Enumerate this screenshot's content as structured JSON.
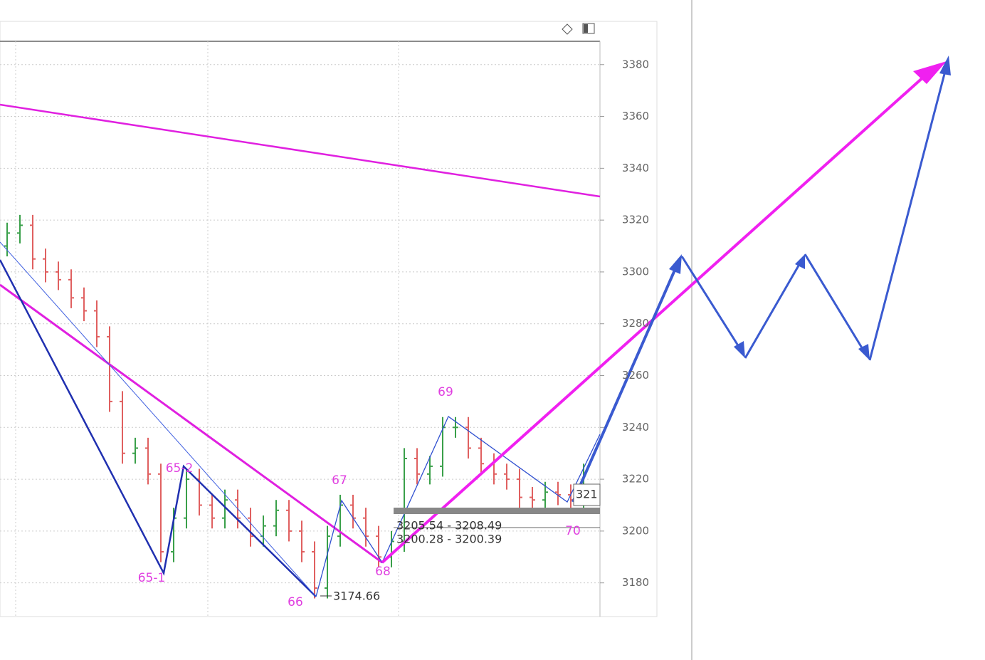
{
  "chart_data": {
    "type": "ohlc",
    "open": [
      3310,
      3315,
      3318,
      3305,
      3300,
      3297,
      3290,
      3285,
      3275,
      3250,
      3230,
      3232,
      3222,
      3192,
      3205,
      3220,
      3210,
      3205,
      3212,
      3205,
      3198,
      3202,
      3208,
      3200,
      3192,
      3178,
      3198,
      3210,
      3205,
      3198,
      3190,
      3196,
      3228,
      3222,
      3225,
      3240,
      3240,
      3232,
      3226,
      3222,
      3220,
      3213,
      3212,
      3215,
      3214,
      3212
    ],
    "high": [
      3319,
      3322,
      3322,
      3309,
      3304,
      3301,
      3294,
      3289,
      3279,
      3254,
      3236,
      3236,
      3226,
      3209,
      3224,
      3224,
      3214,
      3216,
      3216,
      3209,
      3206,
      3212,
      3212,
      3204,
      3196,
      3202,
      3214,
      3214,
      3209,
      3202,
      3200,
      3232,
      3232,
      3229,
      3244,
      3244,
      3244,
      3236,
      3230,
      3226,
      3224,
      3217,
      3219,
      3219,
      3218,
      3226
    ],
    "low": [
      3306,
      3311,
      3301,
      3296,
      3293,
      3286,
      3281,
      3271,
      3246,
      3226,
      3226,
      3218,
      3188,
      3188,
      3201,
      3206,
      3201,
      3201,
      3201,
      3194,
      3194,
      3198,
      3196,
      3188,
      3174,
      3174,
      3194,
      3201,
      3194,
      3186,
      3186,
      3192,
      3218,
      3218,
      3221,
      3236,
      3228,
      3222,
      3218,
      3216,
      3209,
      3208,
      3208,
      3210,
      3208,
      3208
    ],
    "close": [
      3315,
      3318,
      3305,
      3300,
      3297,
      3290,
      3285,
      3275,
      3250,
      3230,
      3232,
      3222,
      3192,
      3205,
      3220,
      3210,
      3205,
      3212,
      3205,
      3198,
      3202,
      3208,
      3200,
      3192,
      3178,
      3198,
      3210,
      3205,
      3198,
      3190,
      3196,
      3228,
      3222,
      3225,
      3240,
      3240,
      3232,
      3226,
      3222,
      3220,
      3213,
      3212,
      3215,
      3214,
      3212,
      3222
    ],
    "up_color": "#3aa04a",
    "down_color": "#e06060",
    "ylim": [
      3167,
      3389
    ],
    "yticks": [
      3180,
      3200,
      3220,
      3240,
      3260,
      3280,
      3300,
      3320,
      3340,
      3360,
      3380
    ],
    "grid": true,
    "wave_labels": [
      "65-1",
      "65-2",
      "66",
      "67",
      "68",
      "69",
      "70"
    ],
    "price_labels": [
      "3174.66",
      "3205.54 - 3208.49",
      "3200.28 - 3200.39",
      "321"
    ]
  }
}
